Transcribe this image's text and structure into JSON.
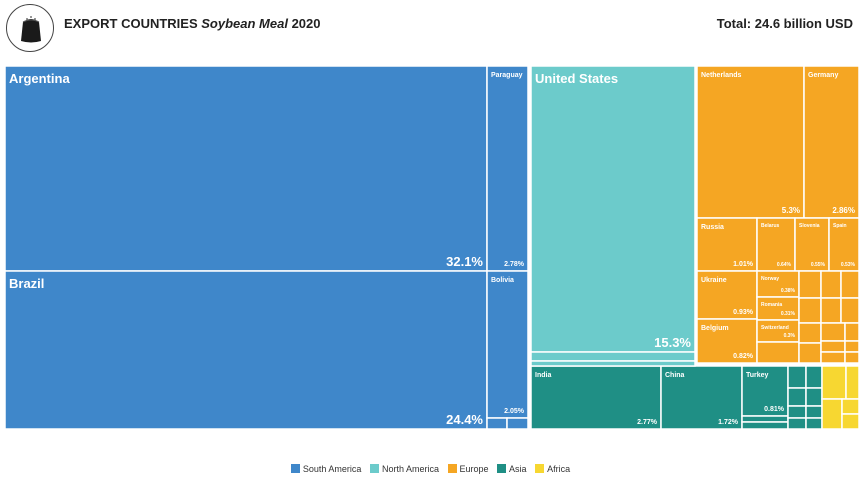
{
  "header": {
    "title_prefix": "EXPORT COUNTRIES",
    "title_product": "Soybean Meal",
    "title_year": "2020",
    "total": "Total: 24.6 billion USD"
  },
  "colors": {
    "South America": "#3f87ca",
    "North America": "#6ccbcb",
    "Europe": "#f5a623",
    "Asia": "#1f8f85",
    "Africa": "#f7d731"
  },
  "legend": [
    "South America",
    "North America",
    "Europe",
    "Asia",
    "Africa"
  ],
  "chart_data": {
    "type": "treemap",
    "title": "EXPORT COUNTRIES Soybean Meal 2020",
    "total": "24.6 billion USD",
    "items": [
      {
        "name": "Argentina",
        "region": "South America",
        "share": 32.1,
        "label": "32.1%"
      },
      {
        "name": "Brazil",
        "region": "South America",
        "share": 24.4,
        "label": "24.4%"
      },
      {
        "name": "Paraguay",
        "region": "South America",
        "share": 2.78,
        "label": "2.78%"
      },
      {
        "name": "Bolivia",
        "region": "South America",
        "share": 2.05,
        "label": "2.05%"
      },
      {
        "name": "United States",
        "region": "North America",
        "share": 15.3,
        "label": "15.3%"
      },
      {
        "name": "Netherlands",
        "region": "Europe",
        "share": 5.3,
        "label": "5.3%"
      },
      {
        "name": "Germany",
        "region": "Europe",
        "share": 2.86,
        "label": "2.86%"
      },
      {
        "name": "Russia",
        "region": "Europe",
        "share": 1.01,
        "label": "1.01%"
      },
      {
        "name": "Belarus",
        "region": "Europe",
        "share": 0.64,
        "label": "0.64%"
      },
      {
        "name": "Slovenia",
        "region": "Europe",
        "share": 0.55,
        "label": "0.55%"
      },
      {
        "name": "Spain",
        "region": "Europe",
        "share": 0.53,
        "label": "0.53%"
      },
      {
        "name": "Ukraine",
        "region": "Europe",
        "share": 0.93,
        "label": "0.93%"
      },
      {
        "name": "Norway",
        "region": "Europe",
        "share": 0.38,
        "label": "0.38%"
      },
      {
        "name": "Romania",
        "region": "Europe",
        "share": 0.31,
        "label": "0.31%"
      },
      {
        "name": "Belgium",
        "region": "Europe",
        "share": 0.82,
        "label": "0.82%"
      },
      {
        "name": "Switzerland",
        "region": "Europe",
        "share": 0.3,
        "label": "0.3%"
      },
      {
        "name": "India",
        "region": "Asia",
        "share": 2.77,
        "label": "2.77%"
      },
      {
        "name": "China",
        "region": "Asia",
        "share": 1.72,
        "label": "1.72%"
      },
      {
        "name": "Turkey",
        "region": "Asia",
        "share": 0.81,
        "label": "0.81%"
      }
    ]
  }
}
